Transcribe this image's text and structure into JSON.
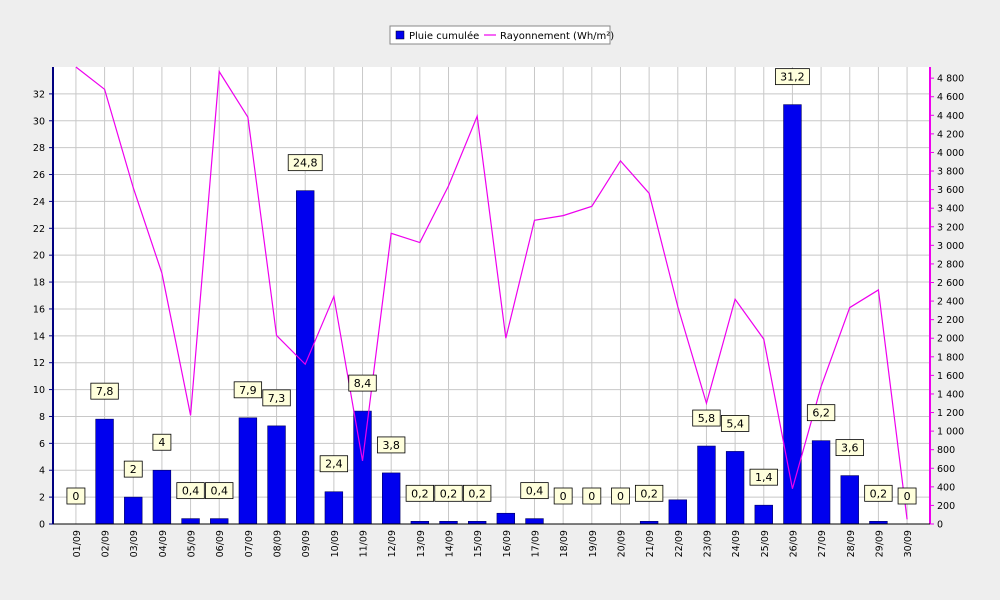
{
  "chart_data": {
    "type": "bar",
    "categories": [
      "01/09",
      "02/09",
      "03/09",
      "04/09",
      "05/09",
      "06/09",
      "07/09",
      "08/09",
      "09/09",
      "10/09",
      "11/09",
      "12/09",
      "13/09",
      "14/09",
      "15/09",
      "16/09",
      "17/09",
      "18/09",
      "19/09",
      "20/09",
      "21/09",
      "22/09",
      "23/09",
      "24/09",
      "25/09",
      "26/09",
      "27/09",
      "28/09",
      "29/09",
      "30/09"
    ],
    "series": [
      {
        "name": "Pluie cumulée",
        "type": "bar",
        "axis": "left",
        "color": "#0000ee",
        "values": [
          0,
          7.8,
          2,
          4,
          0.4,
          0.4,
          7.9,
          7.3,
          24.8,
          2.4,
          8.4,
          3.8,
          0.2,
          0.2,
          0.2,
          0.8,
          0.4,
          0,
          0,
          0,
          0.2,
          1.8,
          5.8,
          5.4,
          1.4,
          31.2,
          6.2,
          3.6,
          0.2,
          0
        ]
      },
      {
        "name": "Rayonnement (Wh/m²)",
        "type": "line",
        "axis": "right",
        "color": "#ee00ee",
        "values": [
          4920,
          4680,
          3620,
          2700,
          1170,
          4870,
          4380,
          2030,
          1720,
          2450,
          680,
          3130,
          3030,
          3640,
          4390,
          2000,
          3270,
          3320,
          3420,
          3910,
          3560,
          2340,
          1300,
          2420,
          1990,
          380,
          1480,
          2330,
          2520,
          50
        ]
      }
    ],
    "data_labels": [
      "0",
      "7,8",
      "2",
      "4",
      "0,4",
      "0,4",
      "7,9",
      "7,3",
      "24,8",
      "2,4",
      "8,4",
      "3,8",
      "0,2",
      "0,2",
      "0,2",
      "",
      "0,4",
      "0",
      "0",
      "0",
      "0,2",
      "",
      "5,8",
      "5,4",
      "1,4",
      "31,2",
      "6,2",
      "3,6",
      "0,2",
      "0"
    ],
    "yaxis_left": {
      "min": 0,
      "max": 34,
      "ticks": [
        0,
        2,
        4,
        6,
        8,
        10,
        12,
        14,
        16,
        18,
        20,
        22,
        24,
        26,
        28,
        30,
        32
      ],
      "tick_labels": [
        "0",
        "2",
        "4",
        "6",
        "8",
        "10",
        "12",
        "14",
        "16",
        "18",
        "20",
        "22",
        "24",
        "26",
        "28",
        "30",
        "32"
      ]
    },
    "yaxis_right": {
      "min": 0,
      "max": 4920,
      "ticks": [
        0,
        200,
        400,
        600,
        800,
        1000,
        1200,
        1400,
        1600,
        1800,
        2000,
        2200,
        2400,
        2600,
        2800,
        3000,
        3200,
        3400,
        3600,
        3800,
        4000,
        4200,
        4400,
        4600,
        4800
      ],
      "tick_labels": [
        "0",
        "200",
        "400",
        "600",
        "800",
        "1 000",
        "1 200",
        "1 400",
        "1 600",
        "1 800",
        "2 000",
        "2 200",
        "2 400",
        "2 600",
        "2 800",
        "3 000",
        "3 200",
        "3 400",
        "3 600",
        "3 800",
        "4 000",
        "4 200",
        "4 400",
        "4 600",
        "4 800"
      ]
    },
    "grid": true,
    "legend_position": "top-center"
  },
  "colors": {
    "background": "#eeeeee",
    "plot_background": "#ffffff",
    "grid": "#c8c8c8",
    "left_axis": "#000080",
    "right_axis": "#ee00ee",
    "label_box": "#ffffdc"
  }
}
